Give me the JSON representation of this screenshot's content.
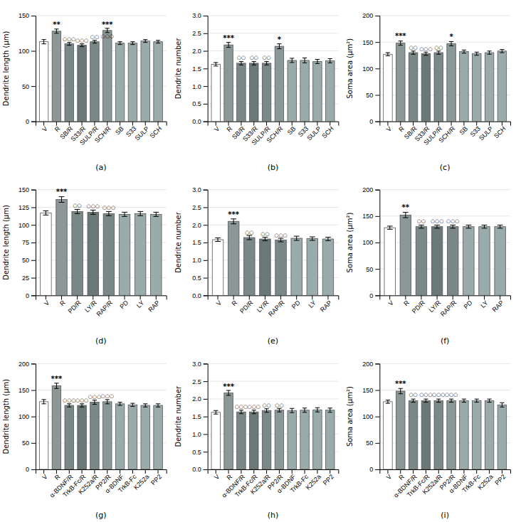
{
  "chart_data": [
    {
      "type": "bar",
      "xlabel": "(a)",
      "ylabel": "Dendrite length (μm)",
      "categories": [
        "V",
        "R",
        "SB/R",
        "S33/R",
        "SULP/R",
        "SCH/R",
        "SB",
        "S33",
        "SULP",
        "SCH"
      ],
      "values": [
        113,
        128,
        110,
        108,
        113,
        129,
        111,
        111,
        114,
        113
      ],
      "errors": [
        3,
        3,
        2,
        2,
        2,
        3,
        2,
        2,
        2,
        2
      ],
      "colors": [
        "#ffffff",
        "#8c9898",
        "#7a8888",
        "#6a7878",
        "#7a8888",
        "#8a9898",
        "#9aabab",
        "#9aabab",
        "#9aabab",
        "#9aabab"
      ],
      "ylim": [
        0,
        150
      ],
      "yticks": [
        0,
        50,
        100,
        150
      ],
      "annotations": [
        {
          "text": "**",
          "x": "R",
          "y": 133
        },
        {
          "text": "***",
          "x": "SCH/R",
          "y": 133
        },
        {
          "text": "○○○",
          "x": "SB/R",
          "y": 114
        },
        {
          "text": "○○○",
          "x": "S33/R",
          "y": 112
        },
        {
          "text": "○○",
          "x": "SULP/R",
          "y": 117
        },
        {
          "text": "○○○",
          "x": "SCH/R",
          "y": 118
        }
      ]
    },
    {
      "type": "bar",
      "xlabel": "(b)",
      "ylabel": "Dendrite number",
      "categories": [
        "V",
        "R",
        "SB/R",
        "S33/R",
        "SULP/R",
        "SCH/R",
        "SB",
        "S33",
        "SULP",
        "SCH"
      ],
      "values": [
        1.62,
        2.17,
        1.65,
        1.65,
        1.65,
        2.13,
        1.73,
        1.73,
        1.7,
        1.72
      ],
      "errors": [
        0.05,
        0.07,
        0.05,
        0.05,
        0.05,
        0.07,
        0.06,
        0.07,
        0.06,
        0.06
      ],
      "colors": [
        "#ffffff",
        "#8c9898",
        "#7a8888",
        "#6a7878",
        "#7a8888",
        "#8a9898",
        "#9aabab",
        "#9aabab",
        "#9aabab",
        "#9aabab"
      ],
      "ylim": [
        0,
        3.0
      ],
      "yticks": [
        {
          "value": 0,
          "label": "0.0"
        },
        0.5,
        {
          "value": 1,
          "label": "1.0"
        },
        1.5,
        {
          "value": 2,
          "label": "2.0"
        },
        2.5,
        {
          "value": 3,
          "label": "3.0"
        }
      ],
      "annotations": [
        {
          "text": "***",
          "x": "R",
          "y": 2.27
        },
        {
          "text": "*",
          "x": "SCH/R",
          "y": 2.23
        },
        {
          "text": "○○",
          "x": "SB/R",
          "y": 1.74
        },
        {
          "text": "○○",
          "x": "S33/R",
          "y": 1.74
        },
        {
          "text": "○○",
          "x": "SULP/R",
          "y": 1.74
        }
      ]
    },
    {
      "type": "bar",
      "xlabel": "(c)",
      "ylabel": "Soma area (μm²)",
      "categories": [
        "V",
        "R",
        "SB/R",
        "S33/R",
        "SULP/R",
        "SCH/R",
        "SB",
        "S33",
        "SULP",
        "SCH"
      ],
      "values": [
        127,
        148,
        130,
        128,
        130,
        147,
        132,
        128,
        130,
        133
      ],
      "errors": [
        3,
        4,
        3,
        3,
        3,
        4,
        3,
        3,
        3,
        3
      ],
      "colors": [
        "#ffffff",
        "#8c9898",
        "#7a8888",
        "#6a7878",
        "#7a8888",
        "#8a9898",
        "#9aabab",
        "#9aabab",
        "#9aabab",
        "#9aabab"
      ],
      "ylim": [
        0,
        200
      ],
      "yticks": [
        0,
        50,
        100,
        150,
        200
      ],
      "annotations": [
        {
          "text": "***",
          "x": "R",
          "y": 155
        },
        {
          "text": "*",
          "x": "SCH/R",
          "y": 154
        },
        {
          "text": "○○",
          "x": "SB/R",
          "y": 136
        },
        {
          "text": "○○○",
          "x": "S33/R",
          "y": 133
        },
        {
          "text": "○○",
          "x": "SULP/R",
          "y": 135
        }
      ]
    },
    {
      "type": "bar",
      "xlabel": "(d)",
      "ylabel": "Dendrite length (μm)",
      "categories": [
        "V",
        "R",
        "PD/R",
        "LY/R",
        "RAP/R",
        "PD",
        "LY",
        "RAP"
      ],
      "values": [
        117,
        136,
        119,
        118,
        116,
        115,
        116,
        115
      ],
      "errors": [
        3,
        4,
        3,
        3,
        3,
        3,
        3,
        3
      ],
      "colors": [
        "#ffffff",
        "#8c9898",
        "#7a8888",
        "#6a7878",
        "#7a8888",
        "#9aabab",
        "#9aabab",
        "#9aabab"
      ],
      "ylim": [
        0,
        150
      ],
      "yticks": [
        0,
        25,
        50,
        75,
        100,
        125,
        150
      ],
      "annotations": [
        {
          "text": "***",
          "x": "R",
          "y": 143
        },
        {
          "text": "○○",
          "x": "PD/R",
          "y": 124
        },
        {
          "text": "○○○",
          "x": "LY/R",
          "y": 123
        },
        {
          "text": "○○○",
          "x": "RAP/R",
          "y": 121
        }
      ]
    },
    {
      "type": "bar",
      "xlabel": "(e)",
      "ylabel": "Dendrite number",
      "categories": [
        "V",
        "R",
        "PD/R",
        "LY/R",
        "RAP/R",
        "PD",
        "LY",
        "RAP"
      ],
      "values": [
        1.58,
        2.1,
        1.64,
        1.6,
        1.57,
        1.62,
        1.61,
        1.6
      ],
      "errors": [
        0.05,
        0.07,
        0.06,
        0.05,
        0.05,
        0.06,
        0.05,
        0.05
      ],
      "colors": [
        "#ffffff",
        "#8c9898",
        "#7a8888",
        "#6a7878",
        "#7a8888",
        "#9aabab",
        "#9aabab",
        "#9aabab"
      ],
      "ylim": [
        0,
        3.0
      ],
      "yticks": [
        {
          "value": 0,
          "label": "0.0"
        },
        0.5,
        {
          "value": 1,
          "label": "1.0"
        },
        1.5,
        {
          "value": 2,
          "label": "2.0"
        },
        2.5,
        {
          "value": 3,
          "label": "3.0"
        }
      ],
      "annotations": [
        {
          "text": "***",
          "x": "R",
          "y": 2.2
        },
        {
          "text": "○○",
          "x": "PD/R",
          "y": 1.73
        },
        {
          "text": "○○",
          "x": "LY/R",
          "y": 1.68
        },
        {
          "text": "○○○",
          "x": "RAP/R",
          "y": 1.64
        }
      ]
    },
    {
      "type": "bar",
      "xlabel": "(f)",
      "ylabel": "Soma area (μm²)",
      "categories": [
        "V",
        "R",
        "PD/R",
        "LY/R",
        "RAP/R",
        "PD",
        "LY",
        "RAP"
      ],
      "values": [
        128,
        152,
        130,
        130,
        130,
        130,
        130,
        130
      ],
      "errors": [
        3,
        5,
        3,
        3,
        3,
        3,
        3,
        3
      ],
      "colors": [
        "#ffffff",
        "#8c9898",
        "#7a8888",
        "#6a7878",
        "#7a8888",
        "#9aabab",
        "#9aabab",
        "#9aabab"
      ],
      "ylim": [
        0,
        200
      ],
      "yticks": [
        0,
        50,
        100,
        150,
        200
      ],
      "annotations": [
        {
          "text": "**",
          "x": "R",
          "y": 160
        },
        {
          "text": "○○",
          "x": "PD/R",
          "y": 136
        },
        {
          "text": "○○○",
          "x": "LY/R",
          "y": 136
        },
        {
          "text": "○○○",
          "x": "RAP/R",
          "y": 136
        }
      ]
    },
    {
      "type": "bar",
      "xlabel": "(g)",
      "ylabel": "Dendrite length (μm)",
      "categories": [
        "V",
        "R",
        "α-BDNF/R",
        "TrkB-Fc/R",
        "K252a/R",
        "PP2/R",
        "α-BDNF",
        "TrkB-Fc",
        "K252a",
        "PP2"
      ],
      "values": [
        128,
        158,
        121,
        121,
        127,
        128,
        124,
        122,
        121,
        121
      ],
      "errors": [
        4,
        5,
        3,
        3,
        4,
        4,
        3,
        3,
        3,
        3
      ],
      "colors": [
        "#ffffff",
        "#8c9898",
        "#7a8888",
        "#6a7878",
        "#7a8888",
        "#8a9898",
        "#9aabab",
        "#9aabab",
        "#9aabab",
        "#9aabab"
      ],
      "ylim": [
        0,
        200
      ],
      "yticks": [
        0,
        50,
        100,
        150,
        200
      ],
      "annotations": [
        {
          "text": "***",
          "x": "R",
          "y": 166
        },
        {
          "text": "○○○",
          "x": "α-BDNF/R",
          "y": 127
        },
        {
          "text": "○○○",
          "x": "TrkB-Fc/R",
          "y": 126
        },
        {
          "text": "○○○",
          "x": "K252a/R",
          "y": 133
        },
        {
          "text": "○○○",
          "x": "PP2/R",
          "y": 135
        }
      ]
    },
    {
      "type": "bar",
      "xlabel": "(h)",
      "ylabel": "Dendrite number",
      "categories": [
        "V",
        "R",
        "α-BDNF/R",
        "TrkB-Fc/R",
        "K252a/R",
        "PP2/R",
        "α-BDNF",
        "TrkB-Fc",
        "K252a",
        "PP2"
      ],
      "values": [
        1.62,
        2.17,
        1.63,
        1.63,
        1.67,
        1.68,
        1.67,
        1.68,
        1.69,
        1.68
      ],
      "errors": [
        0.05,
        0.07,
        0.05,
        0.05,
        0.05,
        0.05,
        0.06,
        0.06,
        0.06,
        0.06
      ],
      "colors": [
        "#ffffff",
        "#8c9898",
        "#7a8888",
        "#6a7878",
        "#7a8888",
        "#8a9898",
        "#9aabab",
        "#9aabab",
        "#9aabab",
        "#9aabab"
      ],
      "ylim": [
        0,
        3.0
      ],
      "yticks": [
        {
          "value": 0,
          "label": "0.0"
        },
        0.5,
        {
          "value": 1,
          "label": "1.0"
        },
        1.5,
        {
          "value": 2,
          "label": "2.0"
        },
        2.5,
        {
          "value": 3,
          "label": "3.0"
        }
      ],
      "annotations": [
        {
          "text": "***",
          "x": "R",
          "y": 2.27
        },
        {
          "text": "○○○",
          "x": "α-BDNF/R",
          "y": 1.71
        },
        {
          "text": "○○○",
          "x": "TrkB-Fc/R",
          "y": 1.71
        },
        {
          "text": "○○",
          "x": "K252a/R",
          "y": 1.75
        },
        {
          "text": "○○",
          "x": "PP2/R",
          "y": 1.76
        }
      ]
    },
    {
      "type": "bar",
      "xlabel": "(i)",
      "ylabel": "Soma area (μm²)",
      "categories": [
        "V",
        "R",
        "α-BDNF/R",
        "TrkB-Fc/R",
        "K252a/R",
        "PP2/R",
        "α-BDNF",
        "TrkB-Fc",
        "K252a",
        "PP2"
      ],
      "values": [
        128,
        148,
        130,
        130,
        130,
        130,
        130,
        130,
        130,
        122
      ],
      "errors": [
        3,
        5,
        3,
        3,
        3,
        3,
        3,
        3,
        3,
        4
      ],
      "colors": [
        "#ffffff",
        "#8c9898",
        "#7a8888",
        "#6a7878",
        "#7a8888",
        "#8a9898",
        "#9aabab",
        "#9aabab",
        "#9aabab",
        "#9aabab"
      ],
      "ylim": [
        0,
        200
      ],
      "yticks": [
        0,
        50,
        100,
        150,
        200
      ],
      "annotations": [
        {
          "text": "***",
          "x": "R",
          "y": 156
        },
        {
          "text": "○○",
          "x": "α-BDNF/R",
          "y": 137
        },
        {
          "text": "○○○",
          "x": "TrkB-Fc/R",
          "y": 137
        },
        {
          "text": "○○○",
          "x": "K252a/R",
          "y": 137
        },
        {
          "text": "○○○",
          "x": "PP2/R",
          "y": 137
        }
      ]
    }
  ]
}
